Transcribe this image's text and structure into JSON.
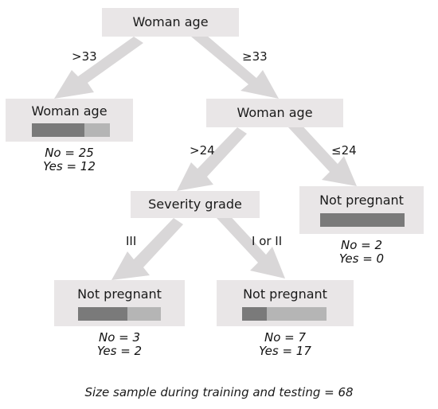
{
  "nodes": {
    "root": {
      "title": "Woman age"
    },
    "left": {
      "title": "Woman age",
      "no_label": "No = 25",
      "yes_label": "Yes = 12",
      "no": 25,
      "yes": 12
    },
    "mid": {
      "title": "Woman age"
    },
    "severity": {
      "title": "Severity grade"
    },
    "np_right": {
      "title": "Not pregnant",
      "no_label": "No = 2",
      "yes_label": "Yes = 0",
      "no": 2,
      "yes": 0
    },
    "np_left": {
      "title": "Not pregnant",
      "no_label": "No = 3",
      "yes_label": "Yes = 2",
      "no": 3,
      "yes": 2
    },
    "np_mid": {
      "title": "Not pregnant",
      "no_label": "No = 7",
      "yes_label": "Yes = 17",
      "no": 7,
      "yes": 17
    }
  },
  "branches": {
    "root_left": ">33",
    "root_right": "≥33",
    "mid_left": ">24",
    "mid_right": "≤24",
    "sev_left": "III",
    "sev_right": "I or II"
  },
  "caption": "Size sample during training and testing = 68",
  "colors": {
    "node_bg": "#e9e6e7",
    "arrow": "#d9d7d8",
    "bar_no": "#7a7a7a",
    "bar_yes": "#b5b5b5"
  }
}
